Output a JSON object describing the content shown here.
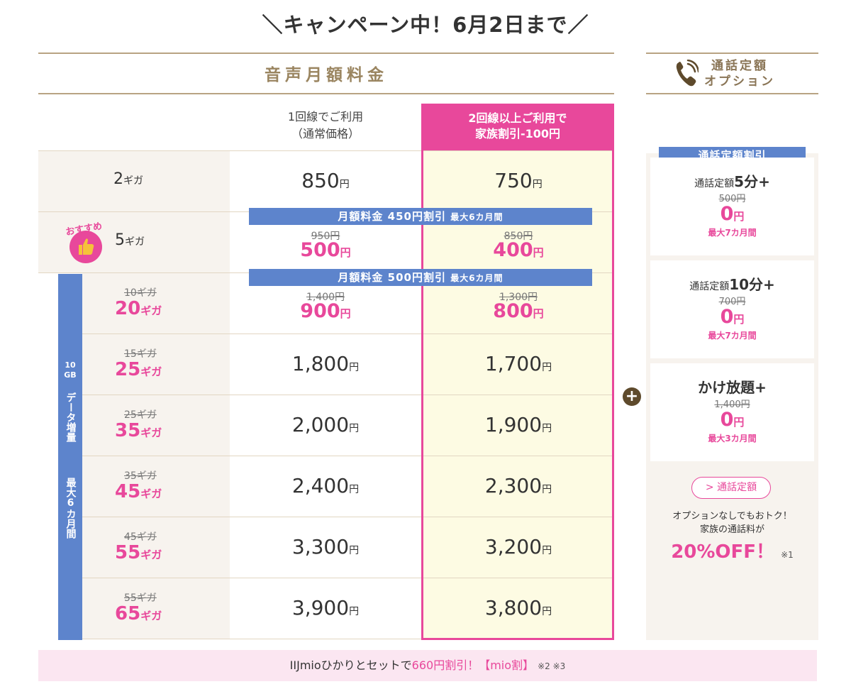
{
  "campaign": {
    "headline": "＼キャンペーン中！6月2日まで／"
  },
  "main_header": {
    "title": "音声月額料金"
  },
  "option_header": {
    "line1": "通話定額",
    "line2": "オプション"
  },
  "columns": {
    "single_line_1": "1回線でご利用",
    "single_line_2": "（通常価格）",
    "family_line_1": "2回線以上ご利用で",
    "family_line_2": "家族割引-100円"
  },
  "currency": "円",
  "gb_unit": "ギガ",
  "discount_bars": [
    {
      "text": "月額料金 450円割引",
      "period": "最大6カ月間"
    },
    {
      "text": "月額料金 500円割引",
      "period": "最大6カ月間"
    }
  ],
  "recommend": {
    "label": "おすすめ"
  },
  "data_increase": {
    "gb": "10\nGB",
    "text1": "データ増量",
    "text2": "最大6カ月間"
  },
  "plans": [
    {
      "gb": "2",
      "single_price": "850",
      "family_price": "750"
    },
    {
      "gb": "5",
      "single_old": "950円",
      "single_price": "500",
      "family_old": "850円",
      "family_price": "400"
    },
    {
      "old_gb": "10ギガ",
      "gb": "20",
      "single_old": "1,400円",
      "single_price": "900",
      "family_old": "1,300円",
      "family_price": "800"
    },
    {
      "old_gb": "15ギガ",
      "gb": "25",
      "single_price": "1,800",
      "family_price": "1,700"
    },
    {
      "old_gb": "25ギガ",
      "gb": "35",
      "single_price": "2,000",
      "family_price": "1,900"
    },
    {
      "old_gb": "35ギガ",
      "gb": "45",
      "single_price": "2,400",
      "family_price": "2,300"
    },
    {
      "old_gb": "45ギガ",
      "gb": "55",
      "single_price": "3,300",
      "family_price": "3,200"
    },
    {
      "old_gb": "55ギガ",
      "gb": "65",
      "single_price": "3,900",
      "family_price": "3,800"
    }
  ],
  "options": {
    "tag": "通話定額割引",
    "items": [
      {
        "title_prefix": "通話定額",
        "title_main": "5分+",
        "old": "500円",
        "new": "0",
        "max": "最大7カ月間"
      },
      {
        "title_prefix": "通話定額",
        "title_main": "10分+",
        "old": "700円",
        "new": "0",
        "max": "最大7カ月間"
      },
      {
        "title_prefix": "",
        "title_main": "かけ放題+",
        "old": "1,400円",
        "new": "0",
        "max": "最大3カ月間"
      }
    ],
    "plus": "+",
    "link_label": "> 通話定額",
    "note_line1": "オプションなしでもおトク！",
    "note_line2": "家族の通話料が",
    "off_text": "20%OFF！",
    "off_note": "※1"
  },
  "footer": {
    "prefix": "IIJmioひかりとセットで",
    "highlight": "660円割引！【mio割】",
    "notes": "※2 ※3"
  },
  "colors": {
    "pink": "#e8489b",
    "blue": "#5d84cc",
    "gold": "#b8a383",
    "beige": "#f7f3ee",
    "cream": "#fdfbe3"
  }
}
